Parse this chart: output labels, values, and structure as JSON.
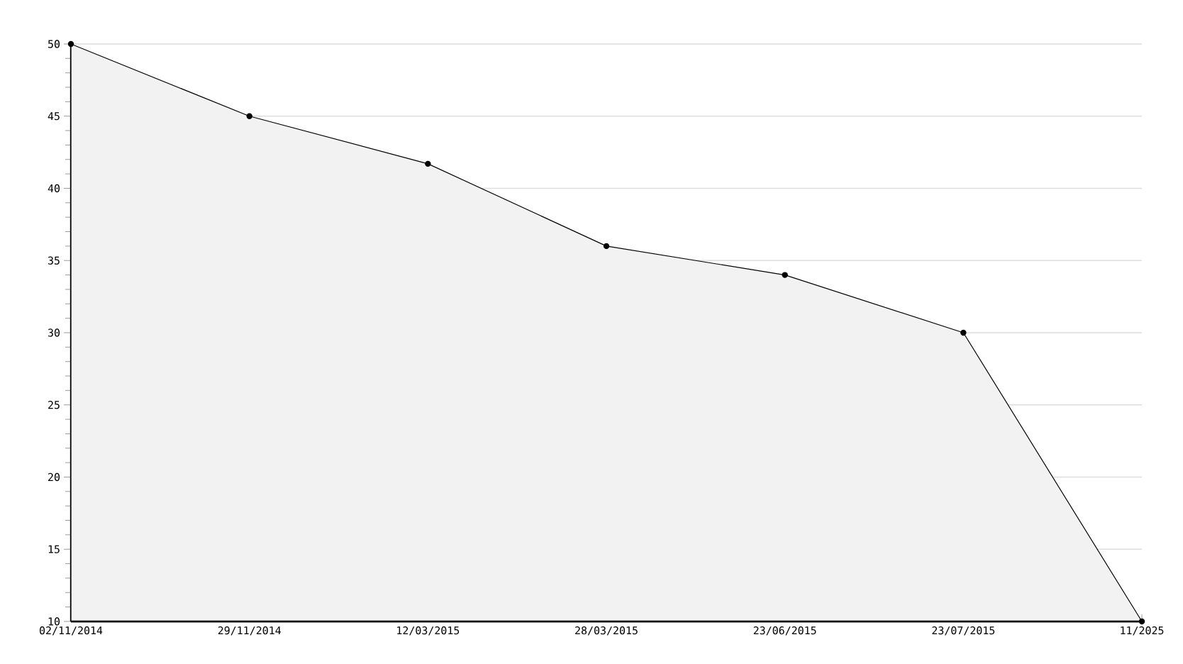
{
  "chart_data": {
    "type": "area",
    "categories": [
      "02/11/2014",
      "29/11/2014",
      "12/03/2015",
      "28/03/2015",
      "23/06/2015",
      "23/07/2015",
      "11/2025"
    ],
    "series": [
      {
        "color": "#000000",
        "values": [
          50,
          45,
          41.7,
          36,
          34,
          30,
          10
        ]
      }
    ],
    "ylim": [
      10,
      50
    ],
    "yticks": [
      10,
      15,
      20,
      25,
      30,
      35,
      40,
      45,
      50
    ],
    "grid": "y",
    "marker": "circle",
    "line_style": "solid"
  }
}
